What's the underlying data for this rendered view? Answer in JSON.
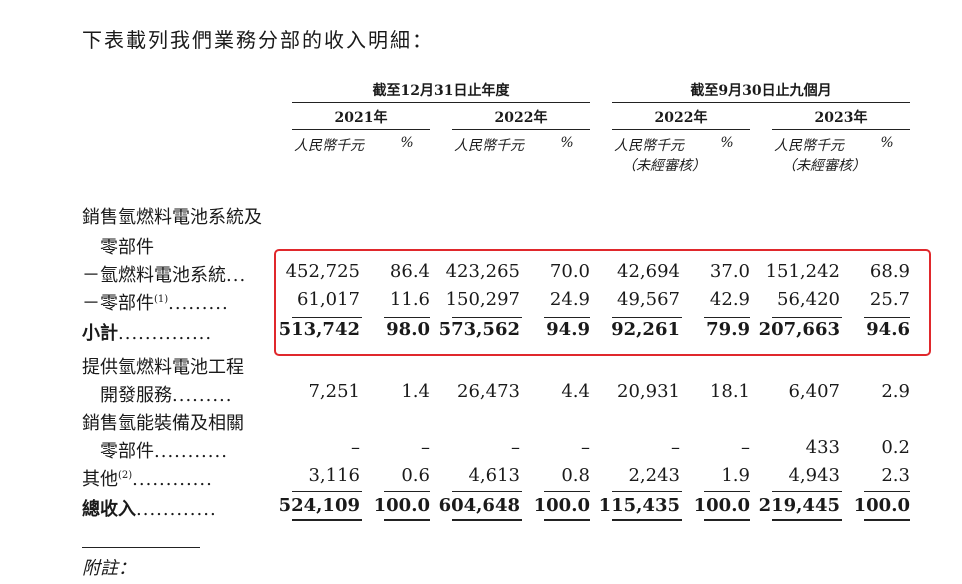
{
  "intro": "下表載列我們業務分部的收入明細：",
  "header": {
    "group1": "截至12月31日止年度",
    "group2": "截至9月30日止九個月",
    "years": [
      "2021年",
      "2022年",
      "2022年",
      "2023年"
    ],
    "currency": "人民幣千元",
    "pct": "%",
    "unaudited": "（未經審核）"
  },
  "rows": [
    {
      "label": "銷售氫燃料電池系統及",
      "values": []
    },
    {
      "label": "零部件",
      "values": []
    },
    {
      "label": "－氫燃料電池系統",
      "dots": "...",
      "values": [
        "452,725",
        "86.4",
        "423,265",
        "70.0",
        "42,694",
        "37.0",
        "151,242",
        "68.9"
      ]
    },
    {
      "label": "－零部件",
      "sup": "(1)",
      "dots": ".........",
      "values": [
        "61,017",
        "11.6",
        "150,297",
        "24.9",
        "49,567",
        "42.9",
        "56,420",
        "25.7"
      ]
    },
    {
      "label": "小計",
      "dots": "..............",
      "bold": true,
      "values": [
        "513,742",
        "98.0",
        "573,562",
        "94.9",
        "92,261",
        "79.9",
        "207,663",
        "94.6"
      ]
    },
    {
      "label": "提供氫燃料電池工程",
      "values": []
    },
    {
      "label": "開發服務",
      "dots": ".........",
      "values": [
        "7,251",
        "1.4",
        "26,473",
        "4.4",
        "20,931",
        "18.1",
        "6,407",
        "2.9"
      ]
    },
    {
      "label": "銷售氫能裝備及相關",
      "values": []
    },
    {
      "label": "零部件",
      "dots": "...........",
      "values": [
        "–",
        "–",
        "–",
        "–",
        "–",
        "–",
        "433",
        "0.2"
      ]
    },
    {
      "label": "其他",
      "sup": "(2)",
      "dots": "............",
      "values": [
        "3,116",
        "0.6",
        "4,613",
        "0.8",
        "2,243",
        "1.9",
        "4,943",
        "2.3"
      ]
    },
    {
      "label": "總收入",
      "dots": "............",
      "bold": true,
      "values": [
        "524,109",
        "100.0",
        "604,648",
        "100.0",
        "115,435",
        "100.0",
        "219,445",
        "100.0"
      ]
    }
  ],
  "footnote": "附註："
}
